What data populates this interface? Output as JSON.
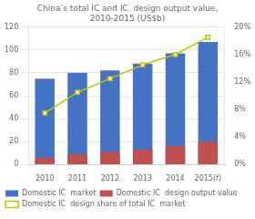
{
  "chart_data": {
    "type": "bar",
    "title": "China’s total IC and IC  design output value,\n2010-2015 (US$b)",
    "categories": [
      "2010",
      "2011",
      "2012",
      "2013",
      "2014",
      "2015(f)"
    ],
    "series": [
      {
        "name": "Domestic IC  market",
        "type": "bar",
        "color": "#4472C4",
        "values": [
          75,
          80,
          82,
          88,
          97,
          107
        ]
      },
      {
        "name": "Domestic IC  design output value",
        "type": "bar",
        "color": "#C0504D",
        "values": [
          6,
          9,
          11,
          13,
          16,
          20
        ]
      },
      {
        "name": "Domestic IC  design share of total IC  market",
        "type": "line",
        "axis": "y2",
        "color": "#BEC400",
        "marker": "square",
        "values": [
          7.5,
          10.5,
          12.5,
          14.5,
          16.0,
          18.5
        ]
      }
    ],
    "ylim": [
      0,
      120
    ],
    "yticks": [
      0,
      20,
      40,
      60,
      80,
      100,
      120
    ],
    "y2lim": [
      0,
      20
    ],
    "y2ticks": [
      {
        "value": 0,
        "label": "0%"
      },
      {
        "value": 4,
        "label": "4%"
      },
      {
        "value": 8,
        "label": "8%"
      },
      {
        "value": 12,
        "label": "12%"
      },
      {
        "value": 16,
        "label": "16%"
      },
      {
        "value": 20,
        "label": "20%"
      }
    ],
    "grid": true,
    "legend": "bottom"
  }
}
